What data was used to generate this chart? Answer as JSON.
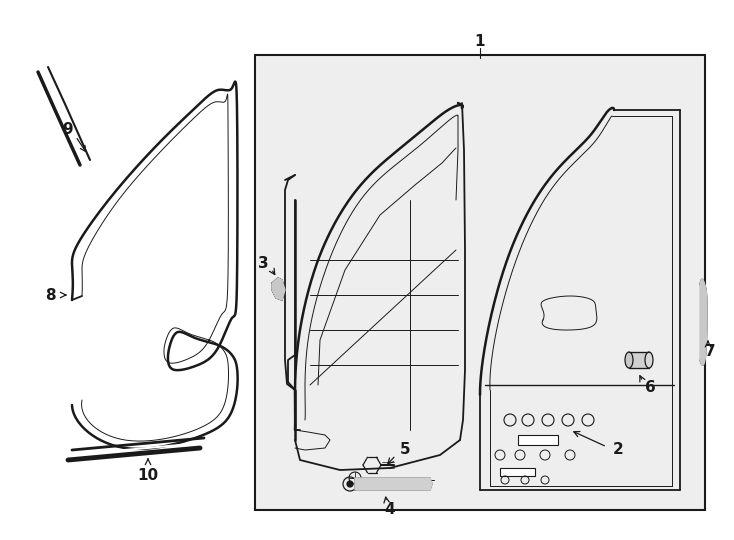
{
  "bg_color": "#ffffff",
  "line_color": "#1a1a1a",
  "box_bg": "#eeeeee",
  "lw_main": 1.3,
  "lw_thin": 0.7,
  "lw_thick": 1.8,
  "fs_label": 11
}
